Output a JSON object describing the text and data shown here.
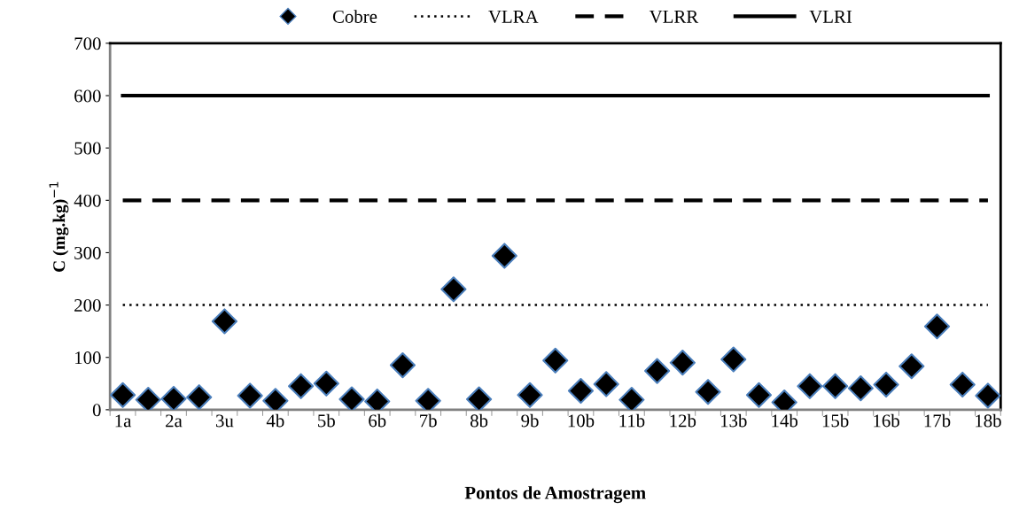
{
  "chart_data": {
    "type": "scatter",
    "xlabel": "Pontos de Amostragem",
    "ylabel": "C (mg.kg)$^{−1}$",
    "categories": [
      "1a",
      null,
      "2a",
      null,
      "3u",
      null,
      "4b",
      null,
      "5b",
      null,
      "6b",
      null,
      "7b",
      null,
      "8b",
      null,
      "9b",
      null,
      "10b",
      null,
      "11b",
      null,
      "12b",
      null,
      "13b",
      null,
      "14b",
      null,
      "15b",
      null,
      "16b",
      null,
      "17b",
      null,
      "18b"
    ],
    "series": [
      {
        "name": "Cobre",
        "marker": "diamond",
        "color": "#000000",
        "values": [
          28,
          19,
          21,
          24,
          169,
          27,
          17,
          45,
          50,
          20,
          16,
          85,
          17,
          230,
          20,
          294,
          28,
          94,
          36,
          49,
          19,
          74,
          90,
          34,
          96,
          28,
          14,
          45,
          45,
          41,
          48,
          83,
          159,
          48,
          27
        ]
      },
      {
        "name": "VLRA",
        "type": "line",
        "line_style": "dotted",
        "color": "#000000",
        "values": [
          200,
          200,
          200,
          200,
          200,
          200,
          200,
          200,
          200,
          200,
          200,
          200,
          200,
          200,
          200,
          200,
          200,
          200,
          200,
          200,
          200,
          200,
          200,
          200,
          200,
          200,
          200,
          200,
          200,
          200,
          200,
          200,
          200,
          200,
          200
        ]
      },
      {
        "name": "VLRR",
        "type": "line",
        "line_style": "dashed",
        "color": "#000000",
        "values": [
          400,
          400,
          400,
          400,
          400,
          400,
          400,
          400,
          400,
          400,
          400,
          400,
          400,
          400,
          400,
          400,
          400,
          400,
          400,
          400,
          400,
          400,
          400,
          400,
          400,
          400,
          400,
          400,
          400,
          400,
          400,
          400,
          400,
          400,
          400
        ]
      },
      {
        "name": "VLRI",
        "type": "line",
        "line_style": "solid",
        "color": "#000000",
        "values": [
          600,
          600,
          600,
          600,
          600,
          600,
          600,
          600,
          600,
          600,
          600,
          600,
          600,
          600,
          600,
          600,
          600,
          600,
          600,
          600,
          600,
          600,
          600,
          600,
          600,
          600,
          600,
          600,
          600,
          600,
          600,
          600,
          600,
          600,
          600
        ]
      }
    ],
    "ylim": [
      0,
      700
    ],
    "yticks": [
      0,
      100,
      200,
      300,
      400,
      500,
      600,
      700
    ],
    "grid": false,
    "legend": "top"
  }
}
